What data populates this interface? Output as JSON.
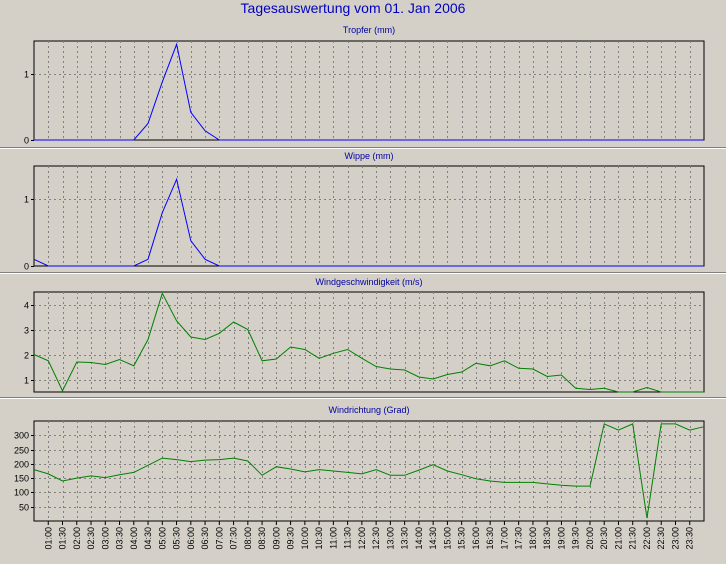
{
  "page": {
    "title": "Tagesauswertung vom 01. Jan 2006"
  },
  "time_labels": [
    "01:00",
    "01:30",
    "02:00",
    "02:30",
    "03:00",
    "03:30",
    "04:00",
    "04:30",
    "05:00",
    "05:30",
    "06:00",
    "06:30",
    "07:00",
    "07:30",
    "08:00",
    "08:30",
    "09:00",
    "09:30",
    "10:00",
    "10:30",
    "11:00",
    "11:30",
    "12:00",
    "12:30",
    "13:00",
    "13:30",
    "14:00",
    "14:30",
    "15:00",
    "15:30",
    "16:00",
    "16:30",
    "17:00",
    "17:30",
    "18:00",
    "18:30",
    "19:00",
    "19:30",
    "20:00",
    "20:30",
    "21:00",
    "21:30",
    "22:00",
    "22:30",
    "23:00",
    "23:30"
  ],
  "colors": {
    "background": "#d4d0c8",
    "title": "#0000c0",
    "panel_title": "#0000a0",
    "grid": "#808080",
    "blue_series": "#0000ff",
    "green_series": "#008000"
  },
  "chart_data": [
    {
      "type": "line",
      "title": "Tropfer (mm)",
      "color": "#0000ff",
      "ylim": [
        0,
        1.5
      ],
      "yticks": [
        0,
        1
      ],
      "ytick_labels": [
        "0",
        "1"
      ],
      "x": [
        "00:30",
        "01:00",
        "01:30",
        "02:00",
        "02:30",
        "03:00",
        "03:30",
        "04:00",
        "04:30",
        "05:00",
        "05:30",
        "06:00",
        "06:30",
        "07:00",
        "07:30",
        "08:00",
        "08:30",
        "09:00",
        "09:30",
        "10:00",
        "10:30",
        "11:00",
        "11:30",
        "12:00",
        "12:30",
        "13:00",
        "13:30",
        "14:00",
        "14:30",
        "15:00",
        "15:30",
        "16:00",
        "16:30",
        "17:00",
        "17:30",
        "18:00",
        "18:30",
        "19:00",
        "19:30",
        "20:00",
        "20:30",
        "21:00",
        "21:30",
        "22:00",
        "22:30",
        "23:00",
        "23:30",
        "00:00"
      ],
      "values": [
        0,
        0,
        0,
        0,
        0,
        0,
        0,
        0,
        0.25,
        0.88,
        1.45,
        0.42,
        0.14,
        0,
        0,
        0,
        0,
        0,
        0,
        0,
        0,
        0,
        0,
        0,
        0,
        0,
        0,
        0,
        0,
        0,
        0,
        0,
        0,
        0,
        0,
        0,
        0,
        0,
        0,
        0,
        0,
        0,
        0,
        0,
        0,
        0,
        0,
        0
      ]
    },
    {
      "type": "line",
      "title": "Wippe (mm)",
      "color": "#0000ff",
      "ylim": [
        0,
        1.5
      ],
      "yticks": [
        0,
        1
      ],
      "ytick_labels": [
        "0",
        "1"
      ],
      "x": [
        "00:30",
        "01:00",
        "01:30",
        "02:00",
        "02:30",
        "03:00",
        "03:30",
        "04:00",
        "04:30",
        "05:00",
        "05:30",
        "06:00",
        "06:30",
        "07:00",
        "07:30",
        "08:00",
        "08:30",
        "09:00",
        "09:30",
        "10:00",
        "10:30",
        "11:00",
        "11:30",
        "12:00",
        "12:30",
        "13:00",
        "13:30",
        "14:00",
        "14:30",
        "15:00",
        "15:30",
        "16:00",
        "16:30",
        "17:00",
        "17:30",
        "18:00",
        "18:30",
        "19:00",
        "19:30",
        "20:00",
        "20:30",
        "21:00",
        "21:30",
        "22:00",
        "22:30",
        "23:00",
        "23:30",
        "00:00"
      ],
      "values": [
        0.1,
        0,
        0,
        0,
        0,
        0,
        0,
        0,
        0.1,
        0.8,
        1.3,
        0.38,
        0.1,
        0,
        0,
        0,
        0,
        0,
        0,
        0,
        0,
        0,
        0,
        0,
        0,
        0,
        0,
        0,
        0,
        0,
        0,
        0,
        0,
        0,
        0,
        0,
        0,
        0,
        0,
        0,
        0,
        0,
        0,
        0,
        0,
        0,
        0,
        0
      ]
    },
    {
      "type": "line",
      "title": "Windgeschwindigkeit (m/s)",
      "color": "#008000",
      "ylim": [
        0.5,
        4.5
      ],
      "yticks": [
        1,
        2,
        3,
        4
      ],
      "ytick_labels": [
        "1",
        "2",
        "3",
        "4"
      ],
      "x": [
        "00:30",
        "01:00",
        "01:30",
        "02:00",
        "02:30",
        "03:00",
        "03:30",
        "04:00",
        "04:30",
        "05:00",
        "05:30",
        "06:00",
        "06:30",
        "07:00",
        "07:30",
        "08:00",
        "08:30",
        "09:00",
        "09:30",
        "10:00",
        "10:30",
        "11:00",
        "11:30",
        "12:00",
        "12:30",
        "13:00",
        "13:30",
        "14:00",
        "14:30",
        "15:00",
        "15:30",
        "16:00",
        "16:30",
        "17:00",
        "17:30",
        "18:00",
        "18:30",
        "19:00",
        "19:30",
        "20:00",
        "20:30",
        "21:00",
        "21:30",
        "22:00",
        "22:30",
        "23:00",
        "23:30",
        "00:00"
      ],
      "values": [
        2.0,
        1.75,
        0.55,
        1.7,
        1.68,
        1.6,
        1.8,
        1.55,
        2.6,
        4.45,
        3.35,
        2.7,
        2.6,
        2.85,
        3.3,
        3.0,
        1.75,
        1.82,
        2.3,
        2.2,
        1.85,
        2.05,
        2.2,
        1.85,
        1.52,
        1.42,
        1.38,
        1.1,
        1.02,
        1.2,
        1.3,
        1.65,
        1.55,
        1.75,
        1.45,
        1.42,
        1.12,
        1.18,
        0.65,
        0.6,
        0.65,
        0.42,
        0.42,
        0.68,
        0.35,
        0.35,
        0.35,
        0.35
      ]
    },
    {
      "type": "line",
      "title": "Windrichtung (Grad)",
      "color": "#008000",
      "ylim": [
        0,
        350
      ],
      "yticks": [
        50,
        100,
        150,
        200,
        250,
        300
      ],
      "ytick_labels": [
        "50",
        "100",
        "150",
        "200",
        "250",
        "300"
      ],
      "x": [
        "00:30",
        "01:00",
        "01:30",
        "02:00",
        "02:30",
        "03:00",
        "03:30",
        "04:00",
        "04:30",
        "05:00",
        "05:30",
        "06:00",
        "06:30",
        "07:00",
        "07:30",
        "08:00",
        "08:30",
        "09:00",
        "09:30",
        "10:00",
        "10:30",
        "11:00",
        "11:30",
        "12:00",
        "12:30",
        "13:00",
        "13:30",
        "14:00",
        "14:30",
        "15:00",
        "15:30",
        "16:00",
        "16:30",
        "17:00",
        "17:30",
        "18:00",
        "18:30",
        "19:00",
        "19:30",
        "20:00",
        "20:30",
        "21:00",
        "21:30",
        "22:00",
        "22:30",
        "23:00",
        "23:30",
        "00:00"
      ],
      "values": [
        180,
        165,
        140,
        150,
        158,
        152,
        162,
        170,
        195,
        220,
        215,
        208,
        213,
        215,
        220,
        210,
        160,
        190,
        182,
        172,
        180,
        175,
        170,
        165,
        180,
        160,
        160,
        178,
        197,
        175,
        162,
        148,
        140,
        135,
        135,
        135,
        130,
        125,
        122,
        122,
        340,
        318,
        340,
        10,
        340,
        340,
        318,
        330
      ]
    }
  ]
}
